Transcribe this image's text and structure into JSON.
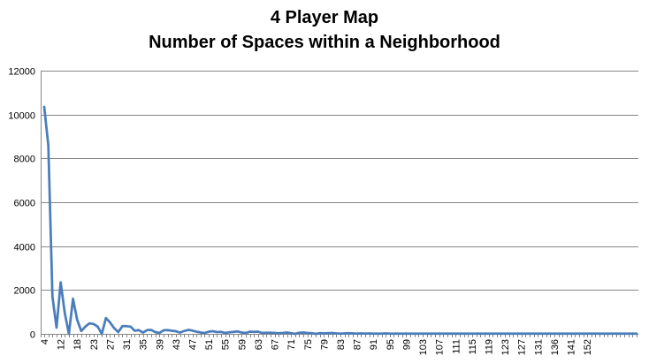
{
  "chart_data": {
    "type": "line",
    "title": "4 Player Map",
    "subtitle": "Number of Spaces within a Neighborhood",
    "xlabel": "",
    "ylabel": "",
    "ylim": [
      0,
      12000
    ],
    "yticks": [
      0,
      2000,
      4000,
      6000,
      8000,
      10000,
      12000
    ],
    "ytick_labels": [
      "0",
      "2000",
      "4000",
      "6000",
      "8000",
      "10000",
      "12000"
    ],
    "grid": true,
    "legend": "none",
    "line_color": "#4a7ebb",
    "x_tick_labels": [
      "4",
      "12",
      "18",
      "23",
      "27",
      "31",
      "35",
      "39",
      "43",
      "47",
      "51",
      "55",
      "59",
      "63",
      "67",
      "71",
      "75",
      "79",
      "83",
      "87",
      "91",
      "95",
      "99",
      "103",
      "107",
      "111",
      "115",
      "119",
      "123",
      "127",
      "131",
      "136",
      "141",
      "152"
    ],
    "x_tick_positions": [
      0,
      4,
      8,
      12,
      16,
      20,
      24,
      28,
      32,
      36,
      40,
      44,
      48,
      52,
      56,
      60,
      64,
      68,
      72,
      76,
      80,
      84,
      88,
      92,
      96,
      100,
      104,
      108,
      112,
      116,
      120,
      124,
      128,
      132
    ],
    "series": [
      {
        "values": [
          10350,
          8600,
          1700,
          280,
          2350,
          950,
          0,
          1600,
          650,
          130,
          330,
          480,
          450,
          330,
          0,
          720,
          520,
          260,
          80,
          350,
          350,
          330,
          140,
          170,
          60,
          170,
          180,
          80,
          40,
          160,
          170,
          140,
          120,
          60,
          130,
          180,
          150,
          100,
          60,
          40,
          100,
          120,
          80,
          90,
          40,
          70,
          90,
          110,
          60,
          40,
          100,
          90,
          100,
          40,
          50,
          50,
          40,
          30,
          40,
          60,
          30,
          0,
          50,
          60,
          40,
          30,
          0,
          30,
          20,
          30,
          40,
          20,
          10,
          20,
          30,
          20,
          10,
          20,
          10,
          20,
          10,
          10,
          10,
          20,
          10,
          10,
          10,
          10,
          10,
          10,
          10,
          10,
          10,
          10,
          10,
          10,
          10,
          10,
          10,
          10,
          10,
          10,
          10,
          10,
          10,
          10,
          10,
          10,
          10,
          10,
          10,
          10,
          10,
          10,
          10,
          10,
          10,
          10,
          10,
          10,
          10,
          10,
          10,
          10,
          10,
          10,
          10,
          10,
          10,
          10,
          10,
          10,
          10,
          10,
          10,
          10,
          10,
          10,
          10,
          10,
          10,
          10,
          10,
          10,
          10
        ]
      }
    ]
  }
}
